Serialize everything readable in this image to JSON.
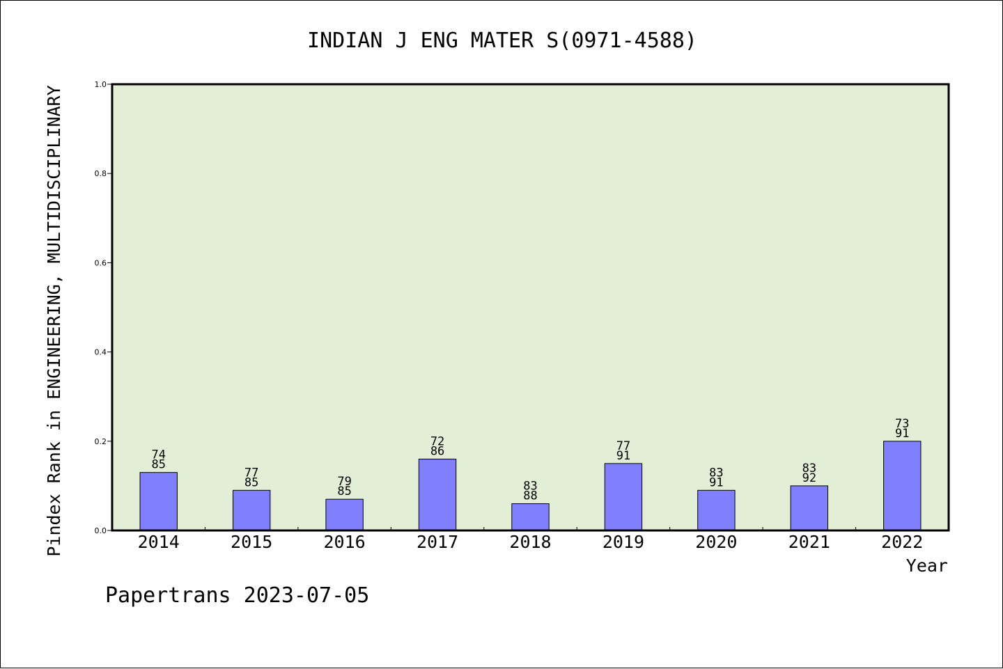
{
  "chart_data": {
    "type": "bar",
    "title": "INDIAN J ENG MATER S(0971-4588)",
    "xlabel": "Year",
    "ylabel": "Pindex Rank in ENGINEERING, MULTIDISCIPLINARY",
    "categories": [
      "2014",
      "2015",
      "2016",
      "2017",
      "2018",
      "2019",
      "2020",
      "2021",
      "2022"
    ],
    "values": [
      0.13,
      0.09,
      0.07,
      0.16,
      0.06,
      0.15,
      0.09,
      0.1,
      0.2
    ],
    "bar_labels": [
      [
        "74",
        "85"
      ],
      [
        "77",
        "85"
      ],
      [
        "79",
        "85"
      ],
      [
        "72",
        "86"
      ],
      [
        "83",
        "88"
      ],
      [
        "77",
        "91"
      ],
      [
        "83",
        "91"
      ],
      [
        "83",
        "92"
      ],
      [
        "73",
        "91"
      ]
    ],
    "yticks": [
      "0.0",
      "0.2",
      "0.4",
      "0.6",
      "0.8",
      "1.0"
    ],
    "ylim": [
      0,
      1.0
    ],
    "grid": false,
    "colors": {
      "plot_background": "#e2efd6",
      "bar_fill": "#8080ff",
      "bar_stroke": "#000000"
    }
  },
  "footer": {
    "watermark": "Papertrans 2023-07-05"
  }
}
